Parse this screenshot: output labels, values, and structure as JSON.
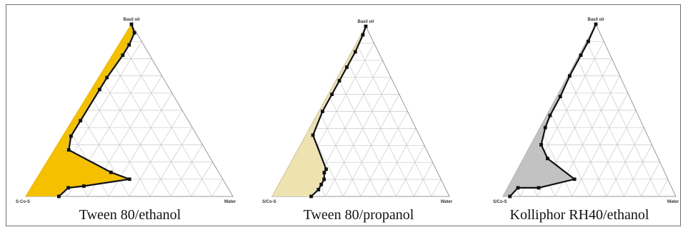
{
  "vertex_labels": {
    "top": "Basil oil",
    "left": "S/Co-S",
    "right": "Water"
  },
  "colors": {
    "grid": "#c8c8c8",
    "outline": "#111111",
    "border": "#6f6f6f"
  },
  "panels": [
    {
      "caption": "Tween 80/ethanol",
      "left_label": "S-Co-S",
      "fill": "#f4c000",
      "boundary": [
        [
          1.0,
          0.0
        ],
        [
          0.95,
          0.04
        ],
        [
          0.88,
          0.05
        ],
        [
          0.82,
          0.05
        ],
        [
          0.69,
          0.04
        ],
        [
          0.62,
          0.04
        ],
        [
          0.44,
          0.04
        ],
        [
          0.35,
          0.04
        ],
        [
          0.27,
          0.07
        ],
        [
          0.14,
          0.34
        ],
        [
          0.1,
          0.45
        ],
        [
          0.06,
          0.25
        ],
        [
          0.05,
          0.18
        ],
        [
          0.0,
          0.16
        ]
      ]
    },
    {
      "caption": "Tween 80/propanol",
      "left_label": "S/Co-S",
      "fill": "#ede2b0",
      "boundary": [
        [
          1.0,
          0.0
        ],
        [
          0.95,
          0.01
        ],
        [
          0.85,
          0.02
        ],
        [
          0.76,
          0.02
        ],
        [
          0.68,
          0.02
        ],
        [
          0.6,
          0.02
        ],
        [
          0.5,
          0.02
        ],
        [
          0.36,
          0.04
        ],
        [
          0.16,
          0.22
        ],
        [
          0.14,
          0.22
        ],
        [
          0.1,
          0.24
        ],
        [
          0.07,
          0.24
        ],
        [
          0.04,
          0.24
        ],
        [
          0.0,
          0.22
        ]
      ]
    },
    {
      "caption": "Kolliphor RH40/ethanol",
      "left_label": "S/Co-S",
      "fill": "#c2c2c2",
      "boundary": [
        [
          1.0,
          0.0
        ],
        [
          0.9,
          0.01
        ],
        [
          0.82,
          0.01
        ],
        [
          0.7,
          0.01
        ],
        [
          0.58,
          0.02
        ],
        [
          0.47,
          0.02
        ],
        [
          0.4,
          0.03
        ],
        [
          0.3,
          0.06
        ],
        [
          0.22,
          0.14
        ],
        [
          0.1,
          0.36
        ],
        [
          0.05,
          0.18
        ],
        [
          0.05,
          0.06
        ],
        [
          0.0,
          0.04
        ]
      ]
    }
  ]
}
